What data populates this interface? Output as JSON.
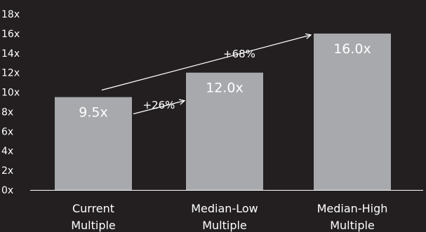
{
  "chart_data": {
    "type": "bar",
    "title": "",
    "xlabel": "",
    "ylabel": "",
    "ylim": [
      0,
      18
    ],
    "yticks": [
      "0x",
      "2x",
      "4x",
      "6x",
      "8x",
      "10x",
      "12x",
      "14x",
      "16x",
      "18x"
    ],
    "categories": [
      [
        "Current",
        "Multiple"
      ],
      [
        "Median-Low",
        "Multiple"
      ],
      [
        "Median-High",
        "Multiple"
      ]
    ],
    "values": [
      9.5,
      12.0,
      16.0
    ],
    "data_labels": [
      "9.5x",
      "12.0x",
      "16.0x"
    ],
    "annotations": [
      {
        "text": "+26%",
        "from_bar": 0,
        "to_bar": 1
      },
      {
        "text": "+68%",
        "from_bar": 0,
        "to_bar": 2
      }
    ],
    "grid": false,
    "colors": {
      "background": "#231f20",
      "bar": "#a7a9ac",
      "text": "#ffffff",
      "axis": "#ffffff"
    }
  }
}
